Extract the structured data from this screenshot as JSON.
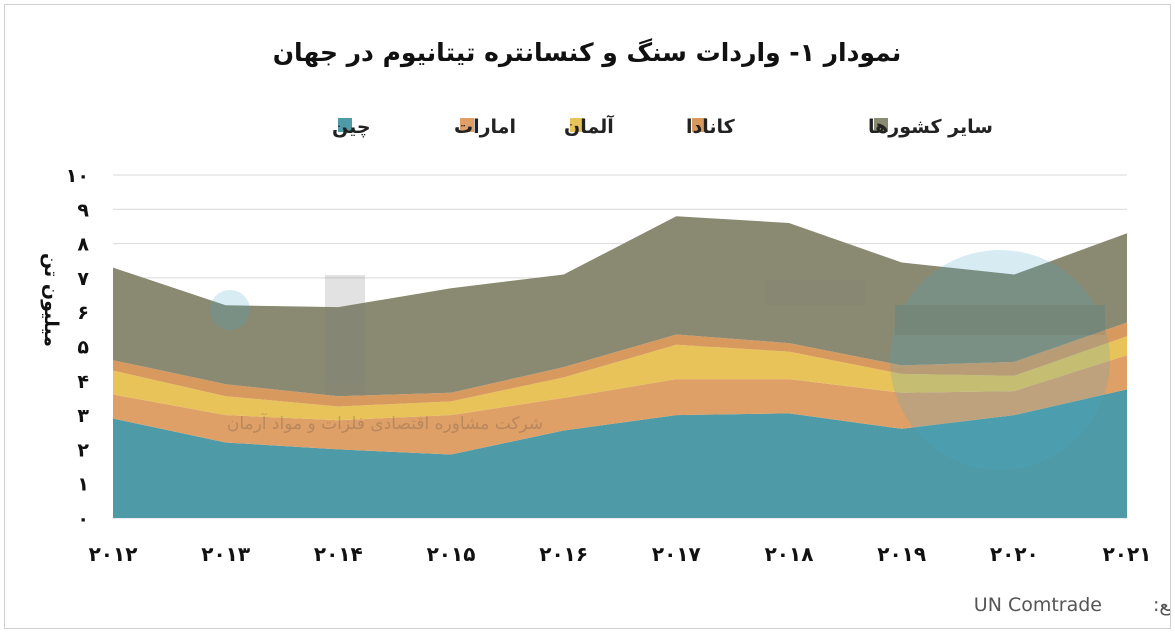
{
  "chart_data": {
    "type": "area",
    "stacked": true,
    "title": "نمودار ۱- واردات سنگ و کنسانتره تیتانیوم در جهان",
    "ylabel": "میلیون تن",
    "xlabel": "",
    "ylim": [
      0,
      10
    ],
    "yticks": [
      "۰",
      "۱",
      "۲",
      "۳",
      "۴",
      "۵",
      "۶",
      "۷",
      "۸",
      "۹",
      "۱۰"
    ],
    "categories": [
      "۲۰۱۲",
      "۲۰۱۳",
      "۲۰۱۴",
      "۲۰۱۵",
      "۲۰۱۶",
      "۲۰۱۷",
      "۲۰۱۸",
      "۲۰۱۹",
      "۲۰۲۰",
      "۲۰۲۱"
    ],
    "grid": true,
    "legend_position": "top",
    "series": [
      {
        "name": "چین",
        "color": "#4e9aa6",
        "values": [
          2.9,
          2.2,
          2.0,
          1.85,
          2.55,
          3.0,
          3.05,
          2.6,
          3.0,
          3.75
        ]
      },
      {
        "name": "امارات",
        "color": "#dfa068",
        "values": [
          0.7,
          0.8,
          0.85,
          1.15,
          0.95,
          1.05,
          1.0,
          1.05,
          0.7,
          1.0
        ]
      },
      {
        "name": "آلمان",
        "color": "#e8c35a",
        "values": [
          0.7,
          0.55,
          0.4,
          0.4,
          0.6,
          1.0,
          0.8,
          0.55,
          0.45,
          0.55
        ]
      },
      {
        "name": "کانادا",
        "color": "#d8995e",
        "values": [
          0.3,
          0.35,
          0.3,
          0.25,
          0.3,
          0.3,
          0.25,
          0.25,
          0.4,
          0.4
        ]
      },
      {
        "name": "سایر کشورها",
        "color": "#8a8a72",
        "values": [
          2.7,
          2.3,
          2.6,
          3.05,
          2.7,
          3.45,
          3.5,
          3.0,
          2.55,
          2.6
        ]
      }
    ],
    "legend_order": [
      "سایر کشورها",
      "کانادا",
      "آلمان",
      "امارات",
      "چین"
    ]
  },
  "source": {
    "label": "منبع:",
    "value": "UN Comtrade"
  },
  "watermark": {
    "subtitle": "شرکت مشاوره اقتصادی فلزات و مواد آرمان"
  }
}
